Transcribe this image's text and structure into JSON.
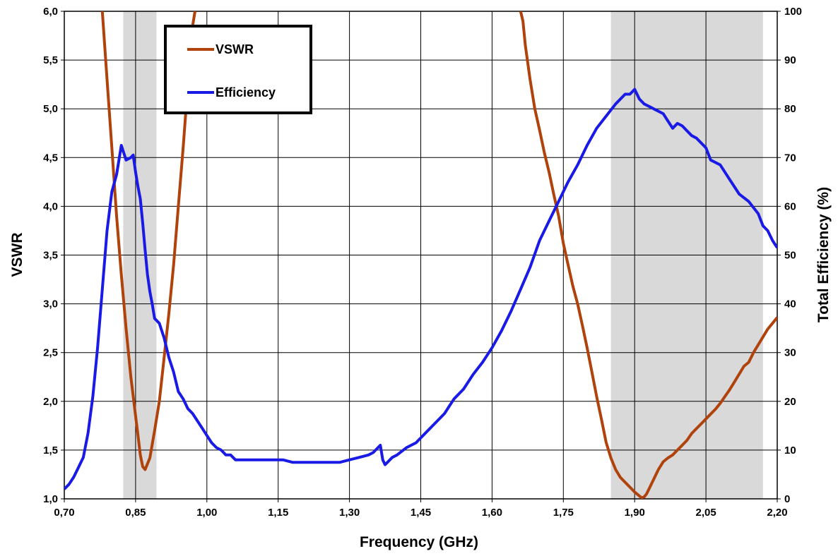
{
  "chart_data": {
    "type": "line",
    "xlabel": "Frequency (GHz)",
    "ylabel": "VSWR",
    "y2label": "Total Efficiency (%)",
    "xlim": [
      0.7,
      2.2
    ],
    "ylim": [
      1.0,
      6.0
    ],
    "y2lim": [
      0,
      100
    ],
    "grid": true,
    "legend_position": "top-left",
    "x_tick_labels": [
      "0,70",
      "0,85",
      "1,00",
      "1,15",
      "1,30",
      "1,45",
      "1,60",
      "1,75",
      "1,90",
      "2,05",
      "2,20"
    ],
    "y_tick_labels": [
      "1,0",
      "1,5",
      "2,0",
      "2,5",
      "3,0",
      "3,5",
      "4,0",
      "4,5",
      "5,0",
      "5,5",
      "6,0"
    ],
    "y2_tick_labels": [
      "0",
      "10",
      "20",
      "30",
      "40",
      "50",
      "60",
      "70",
      "80",
      "90",
      "100"
    ],
    "shaded_bands": [
      [
        0.824,
        0.894
      ],
      [
        1.85,
        2.17
      ]
    ],
    "series": [
      {
        "name": "VSWR",
        "axis": "left",
        "color": "#b0420c",
        "x": [
          0.78,
          0.79,
          0.8,
          0.81,
          0.82,
          0.83,
          0.84,
          0.85,
          0.855,
          0.86,
          0.865,
          0.87,
          0.88,
          0.89,
          0.9,
          0.91,
          0.92,
          0.93,
          0.94,
          0.95,
          0.96,
          0.97,
          0.975,
          1.66,
          1.665,
          1.67,
          1.68,
          1.69,
          1.7,
          1.71,
          1.72,
          1.73,
          1.74,
          1.75,
          1.76,
          1.77,
          1.78,
          1.79,
          1.8,
          1.81,
          1.82,
          1.83,
          1.84,
          1.85,
          1.86,
          1.87,
          1.88,
          1.89,
          1.9,
          1.91,
          1.915,
          1.92,
          1.925,
          1.93,
          1.94,
          1.95,
          1.96,
          1.97,
          1.98,
          1.99,
          2.0,
          2.01,
          2.02,
          2.03,
          2.04,
          2.05,
          2.06,
          2.07,
          2.08,
          2.09,
          2.1,
          2.11,
          2.12,
          2.13,
          2.14,
          2.15,
          2.16,
          2.17,
          2.18,
          2.19,
          2.2
        ],
        "values": [
          6.0,
          5.3,
          4.6,
          3.9,
          3.3,
          2.75,
          2.25,
          1.85,
          1.65,
          1.45,
          1.33,
          1.3,
          1.42,
          1.7,
          2.0,
          2.45,
          2.9,
          3.4,
          4.0,
          4.6,
          5.25,
          5.85,
          6.0,
          6.0,
          5.9,
          5.65,
          5.3,
          5.0,
          4.78,
          4.55,
          4.35,
          4.12,
          3.9,
          3.62,
          3.4,
          3.18,
          3.0,
          2.78,
          2.55,
          2.3,
          2.05,
          1.82,
          1.58,
          1.42,
          1.3,
          1.22,
          1.17,
          1.12,
          1.07,
          1.03,
          1.01,
          1.02,
          1.05,
          1.1,
          1.2,
          1.3,
          1.38,
          1.42,
          1.45,
          1.5,
          1.55,
          1.6,
          1.67,
          1.72,
          1.77,
          1.82,
          1.87,
          1.92,
          1.98,
          2.05,
          2.12,
          2.2,
          2.28,
          2.36,
          2.4,
          2.5,
          2.58,
          2.66,
          2.74,
          2.8,
          2.86
        ]
      },
      {
        "name": "Efficiency",
        "axis": "right",
        "color": "#1a1ae6",
        "x": [
          0.7,
          0.71,
          0.72,
          0.73,
          0.74,
          0.75,
          0.76,
          0.77,
          0.78,
          0.79,
          0.8,
          0.81,
          0.82,
          0.83,
          0.84,
          0.845,
          0.85,
          0.855,
          0.86,
          0.865,
          0.87,
          0.875,
          0.88,
          0.885,
          0.89,
          0.9,
          0.91,
          0.92,
          0.93,
          0.94,
          0.95,
          0.96,
          0.97,
          0.98,
          0.99,
          1.0,
          1.01,
          1.02,
          1.03,
          1.04,
          1.05,
          1.06,
          1.08,
          1.1,
          1.12,
          1.14,
          1.16,
          1.18,
          1.2,
          1.22,
          1.24,
          1.26,
          1.28,
          1.3,
          1.32,
          1.34,
          1.35,
          1.36,
          1.365,
          1.37,
          1.375,
          1.38,
          1.39,
          1.4,
          1.42,
          1.44,
          1.46,
          1.48,
          1.5,
          1.52,
          1.54,
          1.56,
          1.58,
          1.6,
          1.62,
          1.64,
          1.66,
          1.68,
          1.7,
          1.72,
          1.74,
          1.76,
          1.78,
          1.8,
          1.82,
          1.84,
          1.86,
          1.88,
          1.89,
          1.9,
          1.91,
          1.92,
          1.93,
          1.94,
          1.96,
          1.97,
          1.98,
          1.99,
          2.0,
          2.01,
          2.02,
          2.03,
          2.05,
          2.06,
          2.08,
          2.1,
          2.12,
          2.14,
          2.16,
          2.17,
          2.18,
          2.19,
          2.2
        ],
        "values": [
          2.0,
          3.0,
          4.5,
          6.5,
          8.5,
          13.5,
          21.0,
          31.0,
          43.0,
          55.0,
          63.0,
          66.5,
          72.5,
          69.5,
          70.0,
          70.5,
          67.0,
          64.0,
          61.5,
          56.5,
          51.0,
          46.0,
          42.5,
          40.0,
          37.0,
          36.0,
          33.0,
          29.0,
          26.0,
          22.0,
          20.5,
          18.5,
          17.5,
          16.0,
          14.5,
          13.0,
          11.5,
          10.5,
          10.0,
          9.0,
          9.0,
          8.0,
          8.0,
          8.0,
          8.0,
          8.0,
          8.0,
          7.5,
          7.5,
          7.5,
          7.5,
          7.5,
          7.5,
          8.0,
          8.5,
          9.0,
          9.5,
          10.5,
          11.0,
          8.0,
          7.0,
          7.5,
          8.5,
          9.0,
          10.5,
          11.5,
          13.5,
          15.5,
          17.5,
          20.5,
          22.5,
          25.5,
          28.0,
          31.0,
          34.5,
          38.5,
          43.0,
          47.5,
          53.0,
          57.0,
          61.0,
          65.0,
          68.5,
          72.5,
          76.0,
          78.5,
          81.0,
          83.0,
          83.0,
          84.0,
          82.0,
          81.0,
          80.5,
          80.0,
          79.0,
          77.5,
          76.0,
          77.0,
          76.5,
          75.5,
          74.5,
          74.0,
          72.0,
          69.5,
          68.5,
          65.5,
          62.5,
          61.0,
          58.5,
          56.0,
          55.0,
          53.0,
          51.5
        ]
      }
    ]
  }
}
